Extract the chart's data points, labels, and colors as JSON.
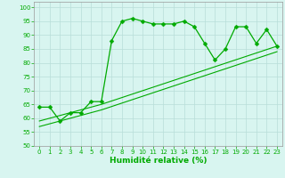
{
  "xlabel": "Humidité relative (%)",
  "ylabel": "",
  "bg_color": "#d8f5f0",
  "grid_color": "#b8ddd8",
  "line_color": "#00aa00",
  "xlim": [
    -0.5,
    23.5
  ],
  "ylim": [
    50,
    102
  ],
  "yticks": [
    50,
    55,
    60,
    65,
    70,
    75,
    80,
    85,
    90,
    95,
    100
  ],
  "xticks": [
    0,
    1,
    2,
    3,
    4,
    5,
    6,
    7,
    8,
    9,
    10,
    11,
    12,
    13,
    14,
    15,
    16,
    17,
    18,
    19,
    20,
    21,
    22,
    23
  ],
  "main_x": [
    0,
    1,
    2,
    3,
    4,
    5,
    6,
    7,
    8,
    9,
    10,
    11,
    12,
    13,
    14,
    15,
    16,
    17,
    18,
    19,
    20,
    21,
    22,
    23
  ],
  "main_y": [
    64,
    64,
    59,
    62,
    62,
    66,
    66,
    88,
    95,
    96,
    95,
    94,
    94,
    94,
    95,
    93,
    87,
    81,
    85,
    93,
    93,
    87,
    92,
    86
  ],
  "line2_x": [
    0,
    3,
    6,
    23
  ],
  "line2_y": [
    59,
    62,
    65,
    86
  ],
  "line3_x": [
    0,
    3,
    6,
    23
  ],
  "line3_y": [
    57,
    60,
    63,
    84
  ],
  "tick_color": "#00aa00",
  "label_fontsize": 5.0,
  "xlabel_fontsize": 6.5
}
